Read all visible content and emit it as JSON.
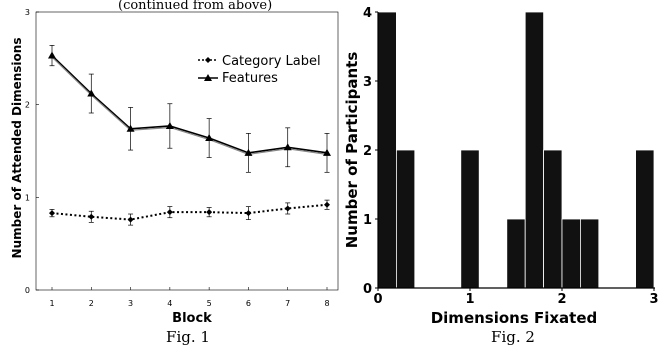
{
  "header_fragment": "(continued from above)",
  "chart_data": [
    {
      "type": "line",
      "caption": "Fig. 1",
      "xlabel": "Block",
      "ylabel": "Number of Attended Dimensions",
      "categories": [
        "1",
        "2",
        "3",
        "4",
        "5",
        "6",
        "7",
        "8"
      ],
      "ylim": [
        0,
        3
      ],
      "yticks": [
        "0",
        "1",
        "2",
        "3"
      ],
      "series": [
        {
          "name": "Category Label",
          "style": "dotted",
          "marker": "diamond",
          "values": [
            0.83,
            0.79,
            0.76,
            0.84,
            0.84,
            0.83,
            0.88,
            0.92
          ],
          "errors": [
            0.04,
            0.06,
            0.06,
            0.06,
            0.05,
            0.07,
            0.06,
            0.05
          ]
        },
        {
          "name": "Features",
          "style": "solid",
          "marker": "triangle",
          "values": [
            2.53,
            2.12,
            1.74,
            1.77,
            1.64,
            1.48,
            1.54,
            1.48
          ],
          "errors": [
            0.11,
            0.21,
            0.23,
            0.24,
            0.21,
            0.21,
            0.21,
            0.21
          ]
        }
      ],
      "legend": "top-right"
    },
    {
      "type": "bar",
      "caption": "Fig. 2",
      "xlabel": "Dimensions Fixated",
      "ylabel": "Number of Participants",
      "xlim": [
        0,
        3
      ],
      "ylim": [
        0,
        4
      ],
      "xticks": [
        "0",
        "1",
        "2",
        "3"
      ],
      "yticks": [
        "0",
        "1",
        "2",
        "3",
        "4"
      ],
      "bin_width": 0.2,
      "bins": [
        {
          "x": 0.1,
          "value": 4
        },
        {
          "x": 0.3,
          "value": 2
        },
        {
          "x": 0.5,
          "value": 0
        },
        {
          "x": 0.7,
          "value": 0
        },
        {
          "x": 0.9,
          "value": 0
        },
        {
          "x": 1.0,
          "value": 2
        },
        {
          "x": 1.5,
          "value": 1
        },
        {
          "x": 1.7,
          "value": 4
        },
        {
          "x": 1.9,
          "value": 2
        },
        {
          "x": 2.1,
          "value": 1
        },
        {
          "x": 2.3,
          "value": 1
        },
        {
          "x": 2.9,
          "value": 2
        }
      ]
    }
  ]
}
